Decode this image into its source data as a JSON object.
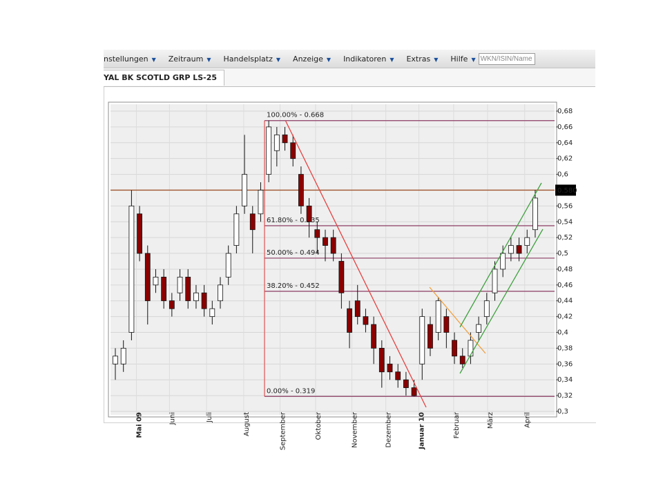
{
  "menu": {
    "items": [
      "nstellungen",
      "Zeitraum",
      "Handelsplatz",
      "Anzeige",
      "Indikatoren",
      "Extras",
      "Hilfe"
    ],
    "search_placeholder": "WKN/ISIN/Name"
  },
  "tab": {
    "title": "YAL BK SCOTLD GRP LS-25"
  },
  "chart_data": {
    "type": "candlestick",
    "open": [
      0.36,
      0.36,
      0.4,
      0.55,
      0.5,
      0.46,
      0.47,
      0.44,
      0.45,
      0.47,
      0.44,
      0.45,
      0.42,
      0.44,
      0.47,
      0.51,
      0.56,
      0.55,
      0.55,
      0.6,
      0.63,
      0.65,
      0.64,
      0.6,
      0.56,
      0.53,
      0.52,
      0.52,
      0.49,
      0.43,
      0.44,
      0.42,
      0.41,
      0.38,
      0.36,
      0.35,
      0.34,
      0.33,
      0.36,
      0.41,
      0.4,
      0.42,
      0.39,
      0.37,
      0.37,
      0.4,
      0.42,
      0.45,
      0.48,
      0.5,
      0.51,
      0.51,
      0.53
    ],
    "high": [
      0.38,
      0.39,
      0.58,
      0.56,
      0.51,
      0.48,
      0.48,
      0.45,
      0.48,
      0.48,
      0.46,
      0.46,
      0.44,
      0.47,
      0.51,
      0.56,
      0.65,
      0.56,
      0.59,
      0.668,
      0.66,
      0.66,
      0.65,
      0.61,
      0.57,
      0.54,
      0.53,
      0.53,
      0.5,
      0.44,
      0.46,
      0.43,
      0.42,
      0.39,
      0.37,
      0.36,
      0.35,
      0.34,
      0.43,
      0.42,
      0.445,
      0.43,
      0.4,
      0.38,
      0.4,
      0.42,
      0.45,
      0.49,
      0.51,
      0.52,
      0.52,
      0.53,
      0.58
    ],
    "low": [
      0.34,
      0.35,
      0.39,
      0.49,
      0.41,
      0.45,
      0.43,
      0.42,
      0.44,
      0.43,
      0.43,
      0.42,
      0.41,
      0.43,
      0.46,
      0.5,
      0.55,
      0.5,
      0.54,
      0.59,
      0.61,
      0.63,
      0.61,
      0.55,
      0.52,
      0.5,
      0.49,
      0.49,
      0.43,
      0.38,
      0.41,
      0.4,
      0.36,
      0.33,
      0.34,
      0.33,
      0.32,
      0.319,
      0.34,
      0.37,
      0.39,
      0.38,
      0.36,
      0.355,
      0.36,
      0.39,
      0.41,
      0.44,
      0.47,
      0.49,
      0.49,
      0.5,
      0.52
    ],
    "close": [
      0.37,
      0.38,
      0.56,
      0.5,
      0.44,
      0.47,
      0.44,
      0.43,
      0.47,
      0.44,
      0.45,
      0.43,
      0.43,
      0.46,
      0.5,
      0.55,
      0.6,
      0.53,
      0.58,
      0.66,
      0.65,
      0.64,
      0.62,
      0.56,
      0.54,
      0.52,
      0.51,
      0.5,
      0.45,
      0.4,
      0.42,
      0.41,
      0.38,
      0.35,
      0.35,
      0.34,
      0.33,
      0.32,
      0.42,
      0.38,
      0.44,
      0.4,
      0.37,
      0.36,
      0.39,
      0.41,
      0.44,
      0.48,
      0.5,
      0.51,
      0.5,
      0.52,
      0.57
    ],
    "up_color": "#ffffff",
    "down_color": "#8b0000",
    "xlim": [
      -0.6,
      54.4
    ],
    "xticks": [
      {
        "value": 2.6,
        "label": "Mai 09"
      },
      {
        "value": 6.7,
        "label": "Juni"
      },
      {
        "value": 11.3,
        "label": "Juli"
      },
      {
        "value": 15.9,
        "label": "August"
      },
      {
        "value": 20.4,
        "label": "September"
      },
      {
        "value": 24.8,
        "label": "Oktober"
      },
      {
        "value": 29.3,
        "label": "November"
      },
      {
        "value": 33.5,
        "label": "Dezember"
      },
      {
        "value": 37.6,
        "label": "Januar 10"
      },
      {
        "value": 41.9,
        "label": "Februar"
      },
      {
        "value": 46.1,
        "label": "März"
      },
      {
        "value": 50.7,
        "label": "April"
      }
    ],
    "ylim": [
      0.3,
      0.68
    ],
    "yticks": [
      {
        "value": 0.3,
        "label": "0,3"
      },
      {
        "value": 0.32,
        "label": "0,32"
      },
      {
        "value": 0.34,
        "label": "0,34"
      },
      {
        "value": 0.36,
        "label": "0,36"
      },
      {
        "value": 0.38,
        "label": "0,38"
      },
      {
        "value": 0.4,
        "label": "0,4"
      },
      {
        "value": 0.42,
        "label": "0,42"
      },
      {
        "value": 0.44,
        "label": "0,44"
      },
      {
        "value": 0.46,
        "label": "0,46"
      },
      {
        "value": 0.48,
        "label": "0,48"
      },
      {
        "value": 0.5,
        "label": "0,5"
      },
      {
        "value": 0.52,
        "label": "0,52"
      },
      {
        "value": 0.54,
        "label": "0,54"
      },
      {
        "value": 0.56,
        "label": "0,56"
      },
      {
        "value": 0.58,
        "label": "0,58"
      },
      {
        "value": 0.6,
        "label": "0,6"
      },
      {
        "value": 0.62,
        "label": "0,62"
      },
      {
        "value": 0.64,
        "label": "0,64"
      },
      {
        "value": 0.66,
        "label": "0,66"
      },
      {
        "value": 0.68,
        "label": "0,68"
      }
    ],
    "grid": true,
    "price_line": {
      "value": 0.58,
      "label": "0.580",
      "color": "#a0522d"
    },
    "fibonacci": {
      "color": "#8b3a62",
      "levels": [
        {
          "value": 0.668,
          "label": "100.00% - 0.668"
        },
        {
          "value": 0.535,
          "label": "61.80% - 0.535"
        },
        {
          "value": 0.494,
          "label": "50.00% - 0.494"
        },
        {
          "value": 0.452,
          "label": "38.20% - 0.452"
        },
        {
          "value": 0.319,
          "label": "0.00% - 0.319"
        }
      ]
    }
  }
}
